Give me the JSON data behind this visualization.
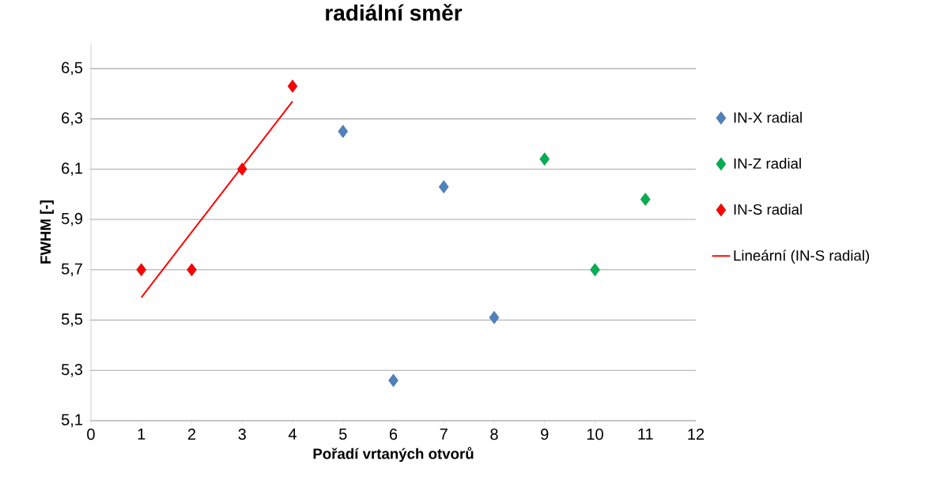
{
  "chart_data": {
    "type": "scatter",
    "title": "radiální směr",
    "xlabel": "Pořadí vrtaných otvorů",
    "ylabel": "FWHM [-]",
    "xlim": [
      0,
      12
    ],
    "xticks": [
      0,
      1,
      2,
      3,
      4,
      5,
      6,
      7,
      8,
      9,
      10,
      11,
      12
    ],
    "ylim": [
      5.1,
      6.6
    ],
    "yticks": [
      {
        "value": 5.1,
        "label": "5,1"
      },
      {
        "value": 5.3,
        "label": "5,3"
      },
      {
        "value": 5.5,
        "label": "5,5"
      },
      {
        "value": 5.7,
        "label": "5,7"
      },
      {
        "value": 5.9,
        "label": "5,9"
      },
      {
        "value": 6.1,
        "label": "6,1"
      },
      {
        "value": 6.3,
        "label": "6,3"
      },
      {
        "value": 6.5,
        "label": "6,5"
      }
    ],
    "grid": "y",
    "legend": "right",
    "marker": "diamond",
    "series": [
      {
        "name": "IN-X radial",
        "color": "#4f81bd",
        "x": [
          5,
          6,
          7,
          8
        ],
        "values": [
          6.25,
          5.26,
          6.03,
          5.51
        ]
      },
      {
        "name": "IN-Z radial",
        "color": "#00b050",
        "x": [
          9,
          10,
          11
        ],
        "values": [
          6.14,
          5.7,
          5.98
        ]
      },
      {
        "name": "IN-S radial",
        "color": "#ff0000",
        "x": [
          1,
          2,
          3,
          4
        ],
        "values": [
          5.7,
          5.7,
          6.1,
          6.43
        ]
      },
      {
        "name": "Lineární (IN-S radial)",
        "type": "line",
        "marker": "none",
        "color": "#ff0000",
        "x": [
          1,
          4
        ],
        "values": [
          5.59,
          6.37
        ]
      }
    ]
  }
}
